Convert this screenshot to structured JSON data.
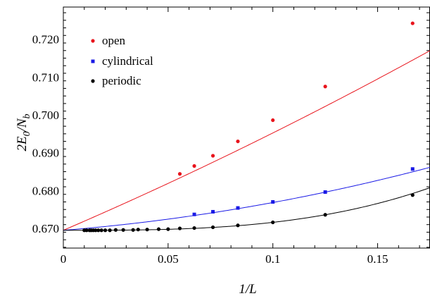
{
  "chart_data": {
    "type": "scatter",
    "title": "",
    "xlabel": "1/L",
    "ylabel": {
      "main": "2E",
      "sub1": "0",
      "slash": "/N",
      "sub2": "b"
    },
    "xlim": [
      0,
      0.175
    ],
    "ylim": [
      0.6648,
      0.7285
    ],
    "xticks": [
      0,
      0.05,
      0.1,
      0.15
    ],
    "xtick_labels": [
      "0",
      "0.05",
      "0.1",
      "0.15"
    ],
    "yticks": [
      0.67,
      0.68,
      0.69,
      0.7,
      0.71,
      0.72
    ],
    "ytick_labels": [
      "0.670",
      "0.680",
      "0.690",
      "0.700",
      "0.710",
      "0.720"
    ],
    "grid": false,
    "legend_position": "top-left",
    "series": [
      {
        "name": "open",
        "color": "#e8141c",
        "marker": "circle",
        "x": [
          0.0556,
          0.0625,
          0.0714,
          0.0833,
          0.1,
          0.125,
          0.1667
        ],
        "y": [
          0.6844,
          0.6865,
          0.6892,
          0.693,
          0.6986,
          0.7075,
          0.7242
        ],
        "fit": [
          0.6695,
          0.2385,
          0.1875
        ]
      },
      {
        "name": "cylindrical",
        "color": "#1a1ae6",
        "marker": "square",
        "x": [
          0.0625,
          0.0714,
          0.0833,
          0.1,
          0.125,
          0.1667
        ],
        "y": [
          0.6737,
          0.6744,
          0.6754,
          0.677,
          0.6796,
          0.6857
        ],
        "fit": [
          0.6695,
          0.0445,
          0.289
        ]
      },
      {
        "name": "periodic",
        "color": "#000000",
        "marker": "circle",
        "x": [
          0.01,
          0.0111,
          0.0125,
          0.0133,
          0.0143,
          0.0154,
          0.0167,
          0.0182,
          0.02,
          0.0222,
          0.025,
          0.0286,
          0.0333,
          0.0357,
          0.04,
          0.0455,
          0.05,
          0.0556,
          0.0625,
          0.0714,
          0.0833,
          0.1,
          0.125,
          0.1667
        ],
        "y": [
          0.6695,
          0.6695,
          0.6695,
          0.6695,
          0.6695,
          0.6695,
          0.6695,
          0.6695,
          0.6695,
          0.6695,
          0.6696,
          0.6696,
          0.6696,
          0.6697,
          0.6697,
          0.6698,
          0.6698,
          0.67,
          0.6701,
          0.6703,
          0.6708,
          0.6716,
          0.6736,
          0.6788
        ],
        "fit": [
          0.6695,
          0.0,
          0.0,
          2.1
        ]
      }
    ]
  }
}
